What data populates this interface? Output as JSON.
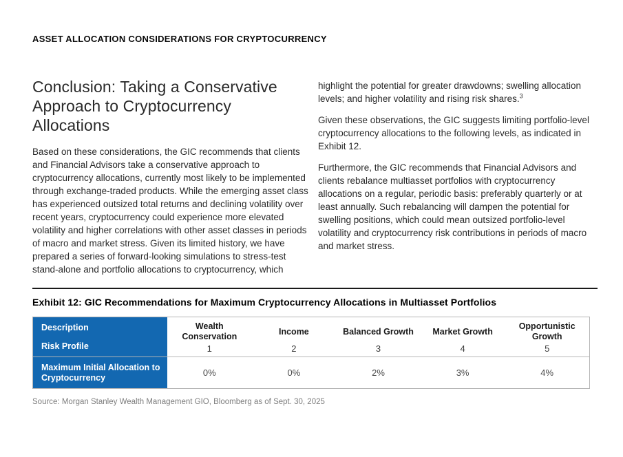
{
  "page": {
    "kicker": "ASSET ALLOCATION CONSIDERATIONS FOR CRYPTOCURRENCY"
  },
  "article": {
    "heading": "Conclusion: Taking a Conservative Approach to Cryptocurrency Allocations",
    "left_paragraph": "Based on these considerations, the GIC recommends that clients and Financial Advisors take a conservative approach to cryptocurrency allocations, currently most likely to be implemented through exchange-traded products. While the emerging asset class has experienced outsized total returns and declining volatility over recent years, cryptocurrency could experience more elevated volatility and higher correlations with other asset classes in periods of macro and market stress. Given its limited history, we have prepared a series of forward-looking simulations to stress-test stand-alone and portfolio allocations to cryptocurrency, which",
    "right_paragraph_1": "highlight the potential for greater drawdowns; swelling allocation levels; and higher volatility and rising risk shares.",
    "right_paragraph_1_footnote": "3",
    "right_paragraph_2": "Given these observations, the GIC suggests limiting portfolio-level cryptocurrency allocations to the following levels, as indicated in Exhibit 12.",
    "right_paragraph_3": "Furthermore, the GIC recommends that Financial Advisors and clients rebalance multiasset portfolios with cryptocurrency allocations on a regular, periodic basis: preferably quarterly or at least annually. Such rebalancing will dampen the potential for swelling positions, which could mean outsized portfolio-level volatility and cryptocurrency risk contributions in periods of macro and market stress."
  },
  "exhibit": {
    "title": "Exhibit 12: GIC Recommendations for Maximum Cryptocurrency Allocations in Multiasset Portfolios",
    "source": "Source: Morgan Stanley Wealth Management GIO, Bloomberg as of Sept. 30, 2025",
    "accent_color": "#1368b1",
    "table": {
      "header_label_top": "Description",
      "header_label_bottom": "Risk Profile",
      "row_label": "Maximum Initial Allocation to Cryptocurrency",
      "columns": [
        {
          "name": "Wealth Conservation",
          "profile": "1",
          "value": "0%"
        },
        {
          "name": "Income",
          "profile": "2",
          "value": "0%"
        },
        {
          "name": "Balanced Growth",
          "profile": "3",
          "value": "2%"
        },
        {
          "name": "Market Growth",
          "profile": "4",
          "value": "3%"
        },
        {
          "name": "Opportunistic Growth",
          "profile": "5",
          "value": "4%"
        }
      ]
    }
  }
}
